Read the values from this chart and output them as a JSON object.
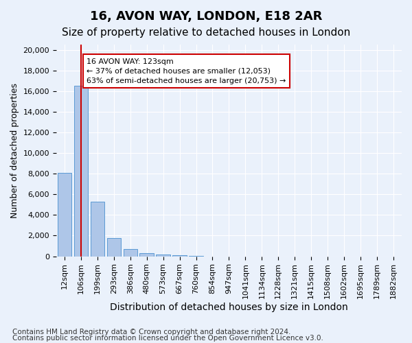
{
  "title1": "16, AVON WAY, LONDON, E18 2AR",
  "title2": "Size of property relative to detached houses in London",
  "xlabel": "Distribution of detached houses by size in London",
  "ylabel": "Number of detached properties",
  "bar_values": [
    8100,
    16500,
    5300,
    1750,
    700,
    280,
    175,
    110,
    50,
    0,
    0,
    0,
    0,
    0,
    0,
    0,
    0,
    0,
    0,
    0
  ],
  "bar_labels": [
    "12sqm",
    "106sqm",
    "199sqm",
    "293sqm",
    "386sqm",
    "480sqm",
    "573sqm",
    "667sqm",
    "760sqm",
    "854sqm",
    "947sqm",
    "1041sqm",
    "1134sqm",
    "1228sqm",
    "1321sqm",
    "1415sqm",
    "1508sqm",
    "1602sqm",
    "1695sqm",
    "1789sqm",
    "1882sqm"
  ],
  "bar_color": "#aec6e8",
  "bar_edge_color": "#5b9bd5",
  "vline_x": 1,
  "vline_color": "#cc0000",
  "annotation_text": "16 AVON WAY: 123sqm\n← 37% of detached houses are smaller (12,053)\n63% of semi-detached houses are larger (20,753) →",
  "annotation_box_color": "#ffffff",
  "annotation_box_edge": "#cc0000",
  "ylim": [
    0,
    20500
  ],
  "yticks": [
    0,
    2000,
    4000,
    6000,
    8000,
    10000,
    12000,
    14000,
    16000,
    18000,
    20000
  ],
  "bg_color": "#eaf1fb",
  "plot_bg": "#eaf1fb",
  "grid_color": "#ffffff",
  "footer1": "Contains HM Land Registry data © Crown copyright and database right 2024.",
  "footer2": "Contains public sector information licensed under the Open Government Licence v3.0.",
  "title1_fontsize": 13,
  "title2_fontsize": 11,
  "xlabel_fontsize": 10,
  "ylabel_fontsize": 9,
  "tick_fontsize": 8,
  "footer_fontsize": 7.5
}
